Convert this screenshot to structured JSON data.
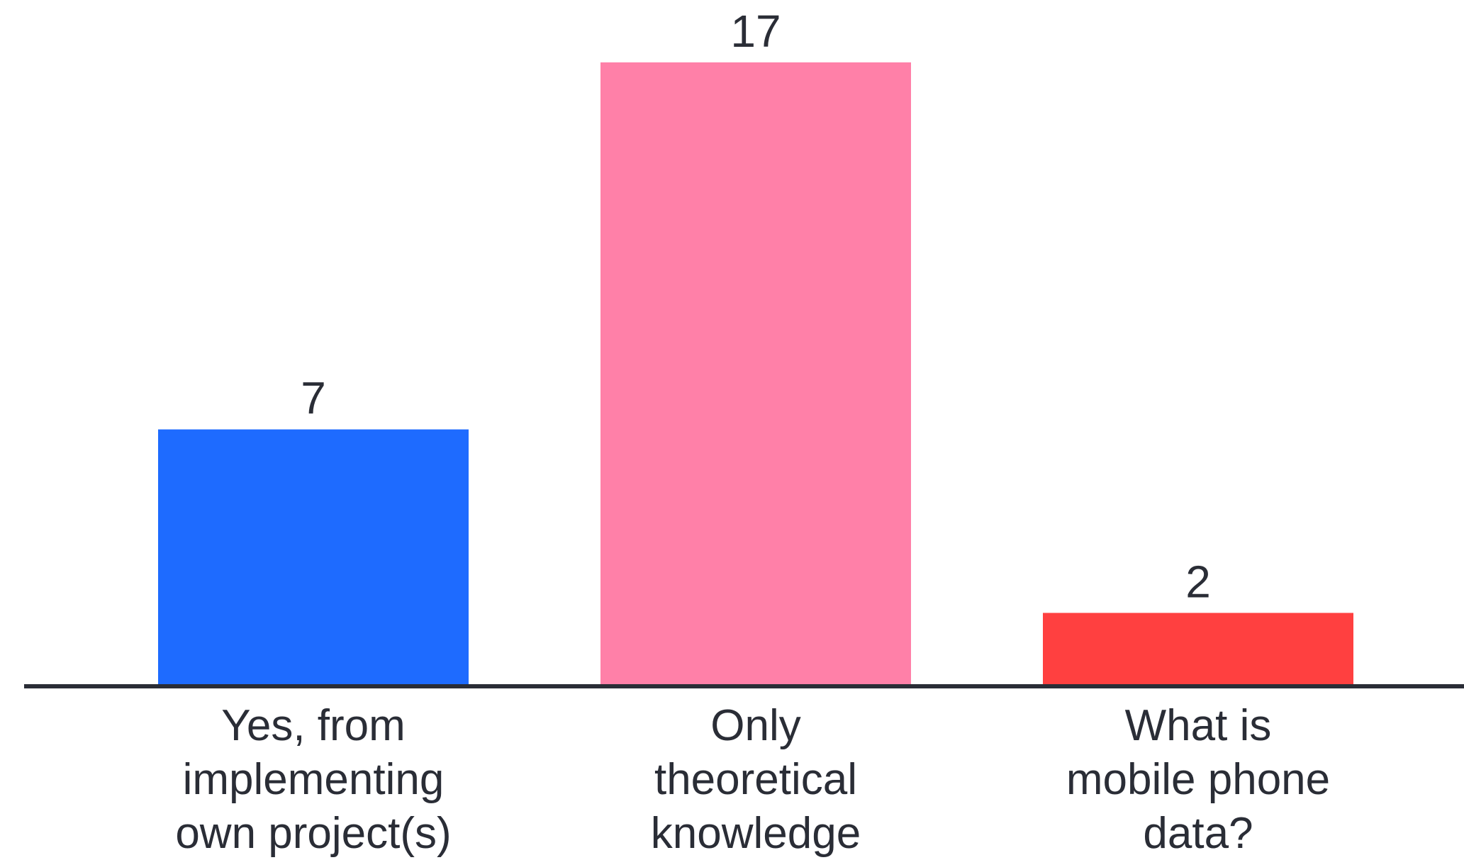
{
  "chart_data": {
    "type": "bar",
    "categories": [
      [
        "Yes, from",
        "implementing",
        "own project(s)"
      ],
      [
        "Only",
        "theoretical",
        "knowledge"
      ],
      [
        "What is",
        "mobile phone",
        "data?"
      ]
    ],
    "values": [
      7,
      17,
      2
    ],
    "value_labels": [
      "7",
      "17",
      "2"
    ],
    "colors": [
      "#1e6bff",
      "#ff80a8",
      "#ff4040"
    ],
    "axis_color": "#2a2d36",
    "ylim": [
      0,
      17
    ],
    "grid": false,
    "title": "",
    "xlabel": "",
    "ylabel": ""
  }
}
